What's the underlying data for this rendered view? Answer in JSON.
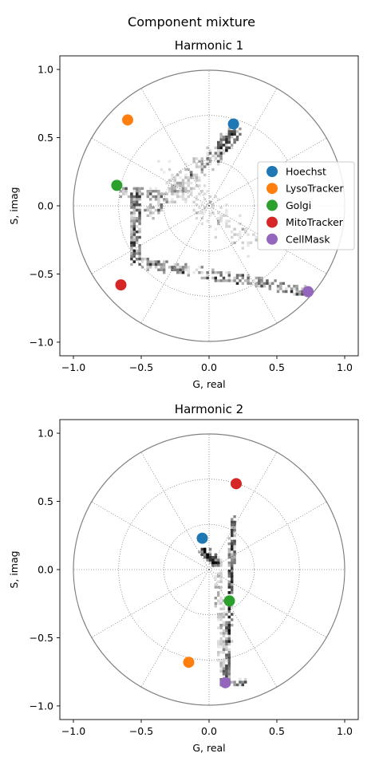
{
  "figure_title": "Component mixture",
  "chart_data": [
    {
      "type": "scatter",
      "title": "Harmonic 1",
      "xlabel": "G, real",
      "ylabel": "S, imag",
      "xlim": [
        -1.1,
        1.1
      ],
      "ylim": [
        -1.1,
        1.1
      ],
      "xticks": [
        -1.0,
        -0.5,
        0.0,
        0.5,
        1.0
      ],
      "yticks": [
        -1.0,
        -0.5,
        0.0,
        0.5,
        1.0
      ],
      "xtick_labels": [
        "−1.0",
        "−0.5",
        "0.0",
        "0.5",
        "1.0"
      ],
      "ytick_labels": [
        "−1.0",
        "−0.5",
        "0.0",
        "0.5",
        "1.0"
      ],
      "polar_grid": true,
      "legend_position": "right",
      "series": [
        {
          "name": "Hoechst",
          "color": "#1f77b4",
          "x": 0.18,
          "y": 0.6
        },
        {
          "name": "LysoTracker",
          "color": "#ff7f0e",
          "x": -0.6,
          "y": 0.63
        },
        {
          "name": "Golgi",
          "color": "#2ca02c",
          "x": -0.68,
          "y": 0.15
        },
        {
          "name": "MitoTracker",
          "color": "#d62728",
          "x": -0.65,
          "y": -0.58
        },
        {
          "name": "CellMask",
          "color": "#9467bd",
          "x": 0.73,
          "y": -0.63
        }
      ]
    },
    {
      "type": "scatter",
      "title": "Harmonic 2",
      "xlabel": "G, real",
      "ylabel": "S, imag",
      "xlim": [
        -1.1,
        1.1
      ],
      "ylim": [
        -1.1,
        1.1
      ],
      "xticks": [
        -1.0,
        -0.5,
        0.0,
        0.5,
        1.0
      ],
      "yticks": [
        -1.0,
        -0.5,
        0.0,
        0.5,
        1.0
      ],
      "xtick_labels": [
        "−1.0",
        "−0.5",
        "0.0",
        "0.5",
        "1.0"
      ],
      "ytick_labels": [
        "−1.0",
        "−0.5",
        "0.0",
        "0.5",
        "1.0"
      ],
      "polar_grid": true,
      "legend_position": "none",
      "series": [
        {
          "name": "Hoechst",
          "color": "#1f77b4",
          "x": -0.05,
          "y": 0.23
        },
        {
          "name": "LysoTracker",
          "color": "#ff7f0e",
          "x": -0.15,
          "y": -0.68
        },
        {
          "name": "Golgi",
          "color": "#2ca02c",
          "x": 0.15,
          "y": -0.23
        },
        {
          "name": "MitoTracker",
          "color": "#d62728",
          "x": 0.2,
          "y": 0.63
        },
        {
          "name": "CellMask",
          "color": "#9467bd",
          "x": 0.12,
          "y": -0.83
        }
      ]
    }
  ]
}
